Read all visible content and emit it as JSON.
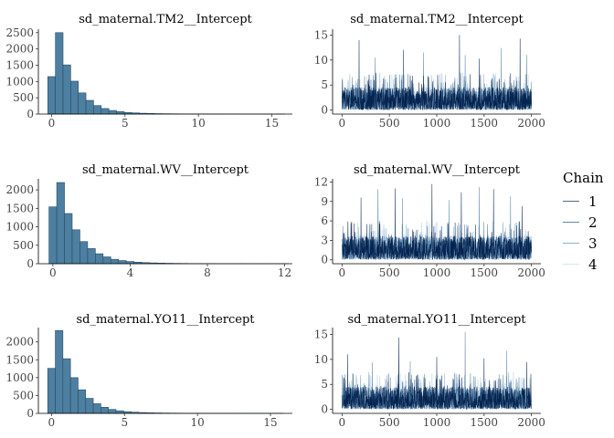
{
  "legend": {
    "title": "Chain",
    "items": [
      {
        "label": "1",
        "color": "#4f6d85"
      },
      {
        "label": "2",
        "color": "#5f89aa"
      },
      {
        "label": "3",
        "color": "#8fb2cd"
      },
      {
        "label": "4",
        "color": "#d6e4ef"
      }
    ]
  },
  "colors": {
    "hist_fill": "#4d7fa1",
    "hist_stroke": "#2b4a63",
    "trace_chains": [
      "#011f4b",
      "#3d6c94",
      "#7fa6c6",
      "#c6dbeb"
    ]
  },
  "chart_data": [
    {
      "type": "bar",
      "title": "sd_maternal.TM2__Intercept",
      "xlabel": "",
      "ylabel": "",
      "xlim": [
        -0.9,
        16.4
      ],
      "ylim": [
        0,
        2550
      ],
      "xticks": [
        0,
        5,
        10,
        15
      ],
      "yticks": [
        0,
        500,
        1000,
        1500,
        2000,
        2500
      ],
      "bin_start": -0.26,
      "bin_width": 0.52,
      "values": [
        1150,
        2500,
        1510,
        1010,
        650,
        420,
        260,
        170,
        110,
        75,
        50,
        35,
        25,
        18,
        13,
        10,
        8,
        6,
        5,
        4,
        3,
        3,
        2,
        2,
        2,
        1,
        1,
        1,
        1,
        1,
        1
      ]
    },
    {
      "type": "line",
      "title": "sd_maternal.TM2__Intercept",
      "xlabel": "",
      "ylabel": "",
      "xlim": [
        -100,
        2100
      ],
      "ylim": [
        -0.8,
        15.8
      ],
      "xticks": [
        0,
        500,
        1000,
        1500,
        2000
      ],
      "yticks": [
        0,
        5,
        10,
        15
      ],
      "n_iter": 2000,
      "typical_level": 1.5,
      "spikes": [
        [
          180,
          14.0
        ],
        [
          350,
          10.5
        ],
        [
          650,
          12.0
        ],
        [
          860,
          11.5
        ],
        [
          1240,
          15.0
        ],
        [
          1300,
          11.0
        ],
        [
          1450,
          10.3
        ],
        [
          1680,
          12.4
        ],
        [
          1880,
          14.3
        ],
        [
          1950,
          11.0
        ]
      ]
    },
    {
      "type": "bar",
      "title": "sd_maternal.WV__Intercept",
      "xlabel": "",
      "ylabel": "",
      "xlim": [
        -0.75,
        12.4
      ],
      "ylim": [
        0,
        2250
      ],
      "xticks": [
        0,
        4,
        8,
        12
      ],
      "yticks": [
        0,
        500,
        1000,
        1500,
        2000
      ],
      "bin_start": -0.2,
      "bin_width": 0.4,
      "values": [
        1540,
        2200,
        1360,
        920,
        600,
        410,
        270,
        185,
        120,
        85,
        60,
        42,
        30,
        22,
        16,
        12,
        9,
        7,
        5,
        4,
        3,
        3,
        2,
        2,
        2,
        1,
        1,
        1,
        1,
        1,
        1
      ]
    },
    {
      "type": "line",
      "title": "sd_maternal.WV__Intercept",
      "xlabel": "",
      "ylabel": "",
      "xlim": [
        -100,
        2100
      ],
      "ylim": [
        -0.6,
        12.2
      ],
      "xticks": [
        0,
        500,
        1000,
        1500,
        2000
      ],
      "yticks": [
        0,
        3,
        6,
        9,
        12
      ],
      "n_iter": 2000,
      "typical_level": 1.2,
      "spikes": [
        [
          200,
          9.6
        ],
        [
          380,
          10.9
        ],
        [
          560,
          11.0
        ],
        [
          640,
          9.5
        ],
        [
          950,
          11.7
        ],
        [
          1130,
          9.2
        ],
        [
          1260,
          10.4
        ],
        [
          1450,
          11.2
        ],
        [
          1600,
          10.9
        ],
        [
          1780,
          9.8
        ],
        [
          1900,
          8.3
        ]
      ]
    },
    {
      "type": "bar",
      "title": "sd_maternal.YO11__Intercept",
      "xlabel": "",
      "ylabel": "",
      "xlim": [
        -0.9,
        16.5
      ],
      "ylim": [
        0,
        2350
      ],
      "xticks": [
        0,
        5,
        10,
        15
      ],
      "yticks": [
        0,
        500,
        1000,
        1500,
        2000
      ],
      "bin_start": -0.26,
      "bin_width": 0.52,
      "values": [
        1260,
        2320,
        1530,
        1000,
        660,
        420,
        270,
        170,
        110,
        72,
        48,
        33,
        23,
        16,
        12,
        9,
        7,
        5,
        4,
        3,
        3,
        2,
        2,
        2,
        1,
        1,
        1,
        1,
        1,
        1,
        1
      ]
    },
    {
      "type": "line",
      "title": "sd_maternal.YO11__Intercept",
      "xlabel": "",
      "ylabel": "",
      "xlim": [
        -100,
        2100
      ],
      "ylim": [
        -0.8,
        16.0
      ],
      "xticks": [
        0,
        500,
        1000,
        1500,
        2000
      ],
      "yticks": [
        0,
        5,
        10,
        15
      ],
      "n_iter": 2000,
      "typical_level": 1.5,
      "spikes": [
        [
          60,
          11.0
        ],
        [
          320,
          9.4
        ],
        [
          600,
          14.4
        ],
        [
          720,
          9.6
        ],
        [
          1000,
          10.5
        ],
        [
          1300,
          15.5
        ],
        [
          1500,
          10.2
        ],
        [
          1740,
          11.7
        ],
        [
          1950,
          9.5
        ]
      ]
    }
  ]
}
